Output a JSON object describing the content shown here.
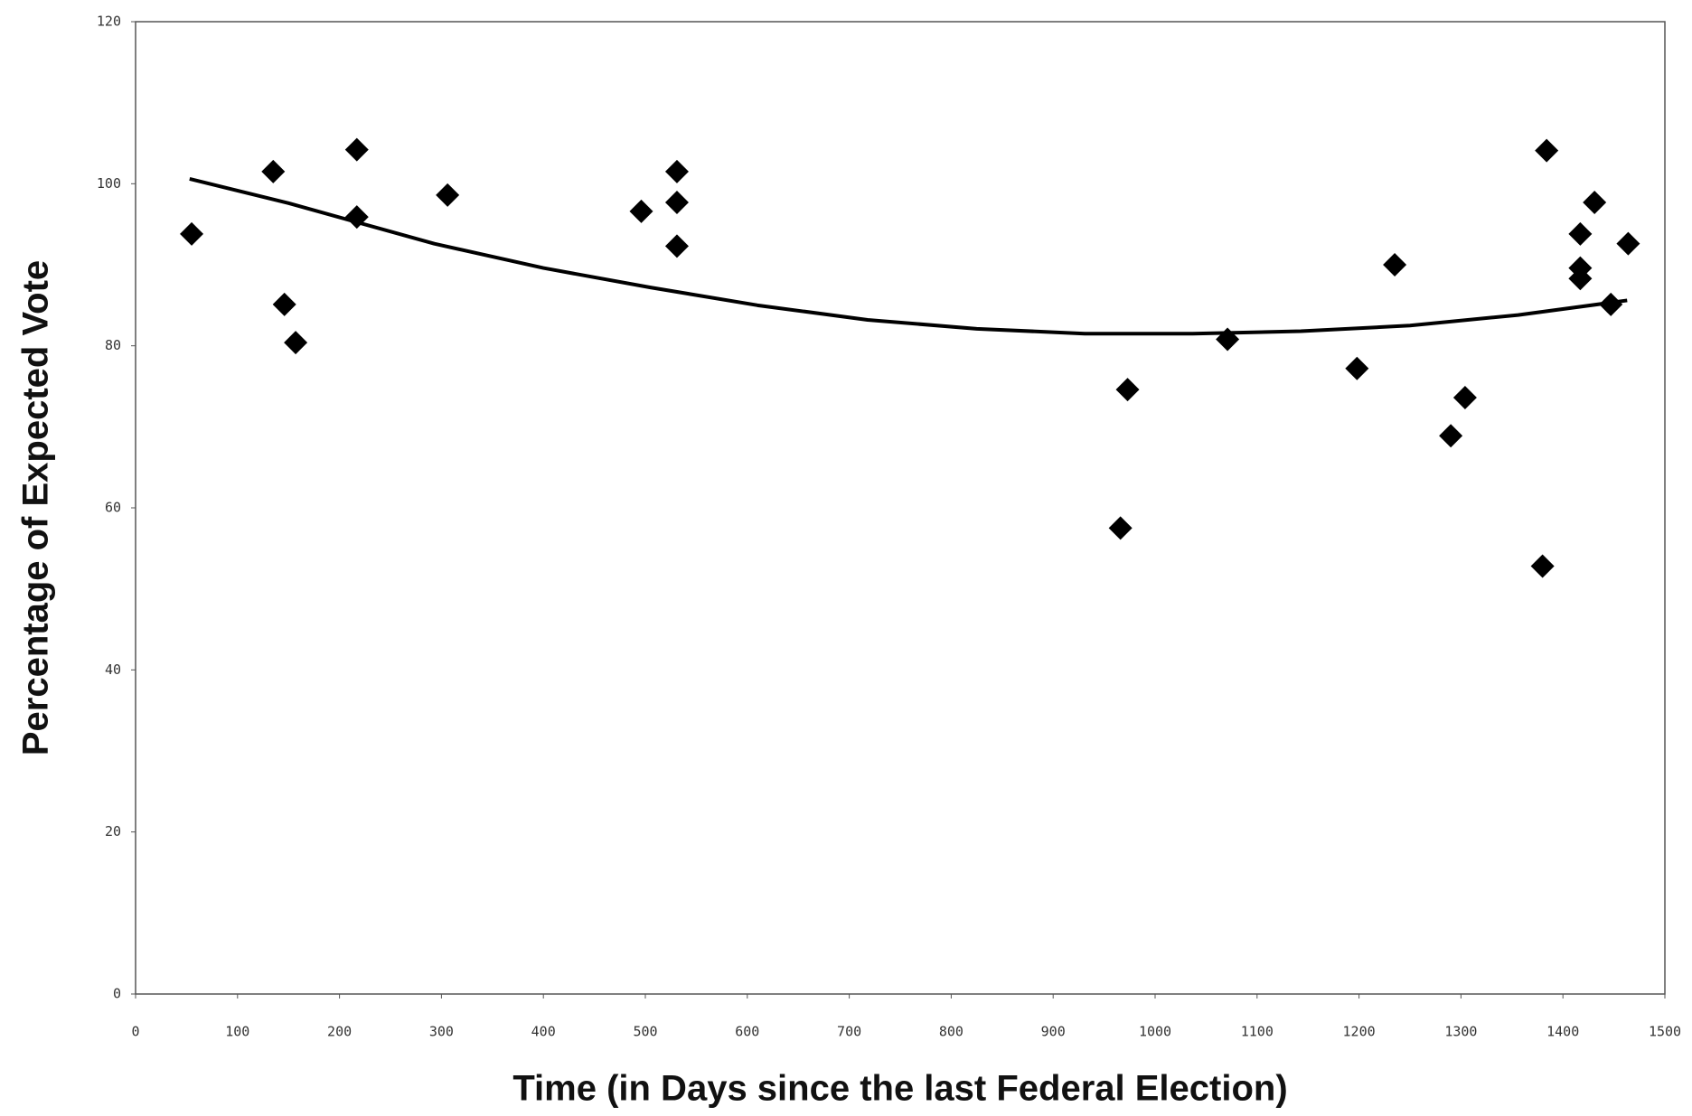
{
  "chart_data": {
    "type": "scatter",
    "xlabel": "Time (in Days since the last Federal Election)",
    "ylabel": "Percentage of Expected Vote",
    "xlim": [
      0,
      1500
    ],
    "ylim": [
      0,
      120
    ],
    "xticks": [
      0,
      100,
      200,
      300,
      400,
      500,
      600,
      700,
      800,
      900,
      1000,
      1100,
      1200,
      1300,
      1400,
      1500
    ],
    "yticks": [
      0,
      20,
      40,
      60,
      80,
      100,
      120
    ],
    "grid": false,
    "series": [
      {
        "color": "#000000",
        "marker": "diamond",
        "x": [
          55,
          135,
          146,
          157,
          217,
          217,
          306,
          496,
          531,
          531,
          531,
          973,
          966,
          1071,
          1198,
          1235,
          1290,
          1304,
          1384,
          1380,
          1417,
          1417,
          1417,
          1431,
          1447,
          1464
        ],
        "values": [
          93.8,
          101.5,
          85.1,
          80.4,
          104.2,
          95.9,
          98.6,
          96.6,
          101.5,
          97.7,
          92.3,
          74.6,
          57.5,
          80.8,
          77.2,
          90.0,
          68.9,
          73.6,
          104.1,
          52.8,
          93.8,
          89.6,
          88.3,
          97.7,
          85.1,
          92.6
        ]
      },
      {
        "color": "#000000",
        "marker": "line",
        "x": [
          53,
          150,
          293,
          400,
          505,
          610,
          718,
          825,
          931,
          1037,
          1143,
          1250,
          1356,
          1463
        ],
        "values": [
          100.6,
          97.6,
          92.6,
          89.6,
          87.2,
          85.0,
          83.2,
          82.1,
          81.5,
          81.5,
          81.8,
          82.5,
          83.8,
          85.6
        ]
      }
    ]
  }
}
